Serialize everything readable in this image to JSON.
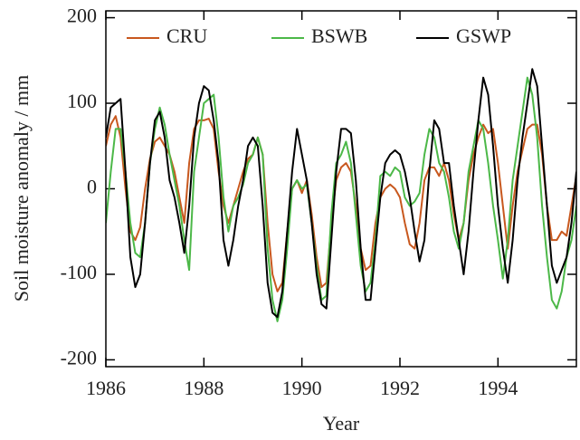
{
  "chart_data": {
    "type": "line",
    "xlabel": "Year",
    "ylabel": "Soil moisture anomaly / mm",
    "x": [
      1986.0,
      1986.1,
      1986.2,
      1986.3,
      1986.4,
      1986.5,
      1986.6,
      1986.7,
      1986.8,
      1986.9,
      1987.0,
      1987.1,
      1987.2,
      1987.3,
      1987.4,
      1987.5,
      1987.6,
      1987.7,
      1987.8,
      1987.9,
      1988.0,
      1988.1,
      1988.2,
      1988.3,
      1988.4,
      1988.5,
      1988.6,
      1988.7,
      1988.8,
      1988.9,
      1989.0,
      1989.1,
      1989.2,
      1989.3,
      1989.4,
      1989.5,
      1989.6,
      1989.7,
      1989.8,
      1989.9,
      1990.0,
      1990.1,
      1990.2,
      1990.3,
      1990.4,
      1990.5,
      1990.6,
      1990.7,
      1990.8,
      1990.9,
      1991.0,
      1991.1,
      1991.2,
      1991.3,
      1991.4,
      1991.5,
      1991.6,
      1991.7,
      1991.8,
      1991.9,
      1992.0,
      1992.1,
      1992.2,
      1992.3,
      1992.4,
      1992.5,
      1992.6,
      1992.7,
      1992.8,
      1992.9,
      1993.0,
      1993.1,
      1993.2,
      1993.3,
      1993.4,
      1993.5,
      1993.6,
      1993.7,
      1993.8,
      1993.9,
      1994.0,
      1994.1,
      1994.2,
      1994.3,
      1994.4,
      1994.5,
      1994.6,
      1994.7,
      1994.8,
      1994.9,
      1995.0,
      1995.1,
      1995.2,
      1995.3,
      1995.4,
      1995.5,
      1995.6
    ],
    "series": [
      {
        "name": "CRU",
        "color": "#c8581e",
        "values": [
          50,
          75,
          85,
          60,
          0,
          -50,
          -60,
          -45,
          0,
          35,
          55,
          60,
          50,
          40,
          20,
          -10,
          -40,
          30,
          70,
          80,
          80,
          82,
          70,
          20,
          -20,
          -40,
          -20,
          0,
          20,
          35,
          40,
          60,
          40,
          -40,
          -100,
          -120,
          -110,
          -50,
          0,
          10,
          -5,
          10,
          -30,
          -80,
          -115,
          -110,
          -40,
          10,
          25,
          30,
          20,
          -20,
          -70,
          -95,
          -90,
          -40,
          -10,
          0,
          5,
          0,
          -10,
          -40,
          -65,
          -70,
          -40,
          10,
          25,
          25,
          15,
          30,
          10,
          -30,
          -60,
          -40,
          10,
          40,
          60,
          75,
          65,
          70,
          30,
          -20,
          -70,
          -20,
          20,
          45,
          70,
          75,
          75,
          40,
          -20,
          -60,
          -60,
          -50,
          -55,
          -20,
          15
        ]
      },
      {
        "name": "BSWB",
        "color": "#4cb848",
        "values": [
          -40,
          20,
          70,
          70,
          20,
          -40,
          -75,
          -80,
          -40,
          30,
          70,
          95,
          75,
          40,
          10,
          -20,
          -60,
          -95,
          20,
          60,
          100,
          105,
          110,
          60,
          -10,
          -50,
          -20,
          -10,
          5,
          30,
          40,
          60,
          40,
          -70,
          -130,
          -155,
          -130,
          -70,
          0,
          10,
          0,
          5,
          -40,
          -90,
          -130,
          -125,
          -30,
          30,
          40,
          55,
          30,
          -30,
          -90,
          -120,
          -110,
          -60,
          15,
          20,
          15,
          25,
          20,
          -10,
          -20,
          -15,
          -5,
          40,
          70,
          60,
          30,
          20,
          -10,
          -50,
          -70,
          -40,
          20,
          50,
          80,
          70,
          30,
          -20,
          -60,
          -105,
          -60,
          10,
          50,
          90,
          130,
          110,
          60,
          -20,
          -80,
          -130,
          -140,
          -120,
          -80,
          -60,
          -20
        ]
      },
      {
        "name": "GSWP",
        "color": "#000000",
        "values": [
          60,
          95,
          100,
          105,
          20,
          -80,
          -115,
          -100,
          -40,
          30,
          80,
          90,
          60,
          10,
          -10,
          -40,
          -75,
          -20,
          60,
          100,
          120,
          115,
          80,
          30,
          -60,
          -90,
          -60,
          -20,
          10,
          50,
          60,
          50,
          -20,
          -110,
          -145,
          -150,
          -120,
          -50,
          20,
          70,
          40,
          10,
          -40,
          -100,
          -135,
          -140,
          -60,
          20,
          70,
          70,
          65,
          10,
          -70,
          -130,
          -130,
          -70,
          -10,
          30,
          40,
          45,
          40,
          20,
          -10,
          -50,
          -85,
          -60,
          20,
          80,
          70,
          30,
          30,
          -20,
          -60,
          -100,
          -50,
          20,
          80,
          130,
          110,
          50,
          -20,
          -70,
          -110,
          -60,
          10,
          60,
          100,
          140,
          120,
          50,
          -20,
          -90,
          -110,
          -95,
          -80,
          -40,
          20
        ]
      }
    ],
    "xlim": [
      1986,
      1995.6
    ],
    "xticks": [
      1986,
      1988,
      1990,
      1992,
      1994
    ],
    "ylim": [
      -208,
      208
    ],
    "yticks": [
      -200,
      -100,
      0,
      100,
      200
    ],
    "grid": false,
    "legend": "top"
  }
}
